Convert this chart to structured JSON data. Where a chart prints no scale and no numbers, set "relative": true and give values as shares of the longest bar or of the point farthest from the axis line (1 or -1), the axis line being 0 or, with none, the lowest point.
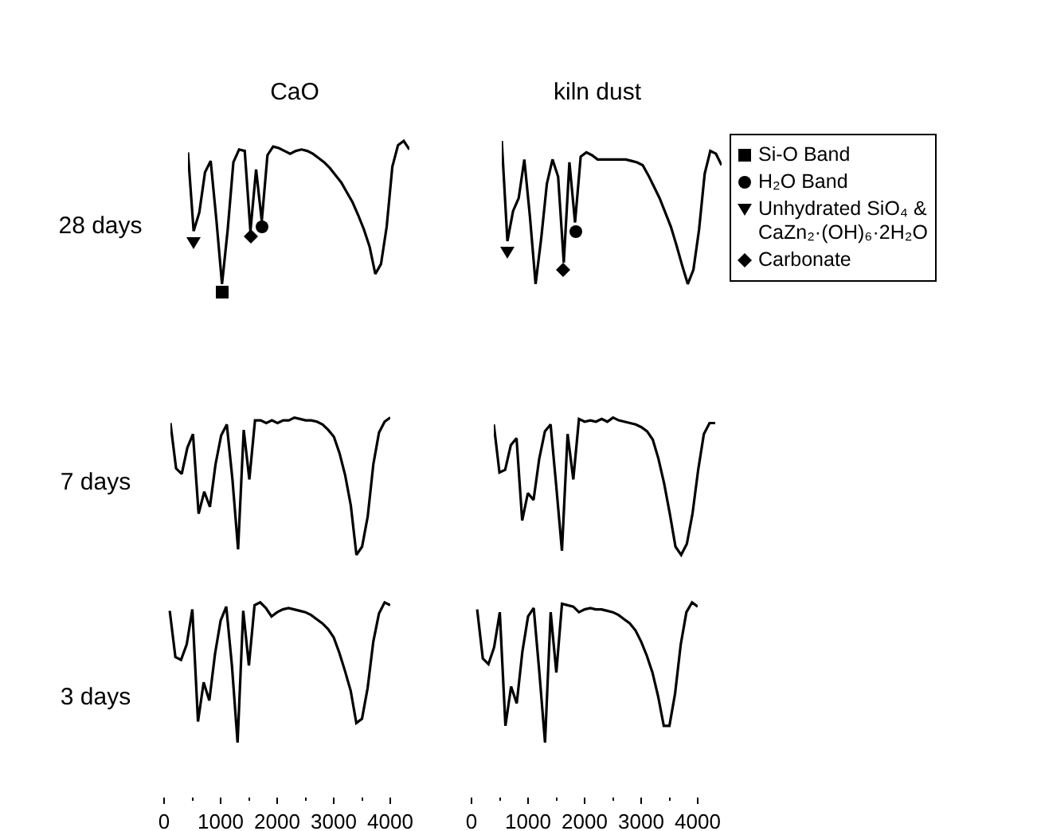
{
  "chart_data": [
    {
      "type": "other",
      "annotations": [
        "CaO",
        "kiln dust",
        "28 days",
        "7 days",
        "3 days",
        "Si-O Band",
        "H₂O Band",
        "Unhydrated SiO₄ &\nCaZn₂·(OH)₆·2H₂O",
        "Carbonate"
      ]
    },
    {
      "type": "line",
      "relative": true,
      "tick_labels": false,
      "categories": [
        null,
        null,
        null,
        null,
        null,
        null,
        null,
        null,
        null,
        null,
        null,
        null,
        null,
        null,
        null,
        null,
        null,
        null,
        null,
        null,
        null,
        null,
        null,
        null,
        null,
        null,
        null,
        null,
        null,
        null,
        null,
        null,
        null,
        null,
        null,
        null,
        null,
        null,
        null,
        null
      ],
      "series": [
        {
          "type": "line",
          "color": "#000000",
          "values": [
            0.92,
            0.37,
            0.5,
            0.78,
            0.86,
            0.45,
            0,
            0.38,
            0.85,
            0.94,
            0.93,
            0.37,
            0.8,
            0.44,
            0.9,
            0.96,
            0.95,
            0.93,
            0.91,
            0.93,
            0.94,
            0.93,
            0.91,
            0.88,
            0.85,
            0.81,
            0.76,
            0.71,
            0.64,
            0.57,
            0.48,
            0.38,
            0.26,
            0.07,
            0.14,
            0.4,
            0.82,
            0.97,
            1,
            0.94
          ]
        }
      ]
    },
    {
      "type": "line",
      "relative": true,
      "tick_labels": false,
      "categories": [
        null,
        null,
        null,
        null,
        null,
        null,
        null,
        null,
        null,
        null,
        null,
        null,
        null,
        null,
        null,
        null,
        null,
        null,
        null,
        null,
        null,
        null,
        null,
        null,
        null,
        null,
        null,
        null,
        null,
        null,
        null,
        null,
        null,
        null,
        null,
        null,
        null,
        null,
        null,
        null
      ],
      "series": [
        {
          "type": "line",
          "color": "#000000",
          "values": [
            1,
            0.3,
            0.51,
            0.6,
            0.87,
            0.47,
            0,
            0.32,
            0.7,
            0.87,
            0.75,
            0.15,
            0.85,
            0.43,
            0.89,
            0.92,
            0.9,
            0.87,
            0.87,
            0.87,
            0.87,
            0.87,
            0.87,
            0.86,
            0.85,
            0.83,
            0.76,
            0.68,
            0.6,
            0.5,
            0.4,
            0.27,
            0.13,
            0,
            0.1,
            0.38,
            0.77,
            0.93,
            0.91,
            0.83
          ]
        }
      ]
    },
    {
      "type": "line",
      "relative": true,
      "tick_labels": false,
      "categories": [
        null,
        null,
        null,
        null,
        null,
        null,
        null,
        null,
        null,
        null,
        null,
        null,
        null,
        null,
        null,
        null,
        null,
        null,
        null,
        null,
        null,
        null,
        null,
        null,
        null,
        null,
        null,
        null,
        null,
        null,
        null,
        null,
        null,
        null,
        null,
        null,
        null,
        null,
        null,
        null
      ],
      "series": [
        {
          "type": "line",
          "color": "#000000",
          "values": [
            0.96,
            0.63,
            0.59,
            0.78,
            0.88,
            0.3,
            0.46,
            0.35,
            0.66,
            0.87,
            0.95,
            0.55,
            0.04,
            0.91,
            0.55,
            0.98,
            0.98,
            0.96,
            0.98,
            0.96,
            0.98,
            0.98,
            1,
            0.99,
            0.98,
            0.98,
            0.97,
            0.95,
            0.91,
            0.86,
            0.74,
            0.58,
            0.36,
            0,
            0.06,
            0.28,
            0.66,
            0.89,
            0.97,
            1
          ]
        }
      ]
    },
    {
      "type": "line",
      "relative": true,
      "tick_labels": false,
      "categories": [
        null,
        null,
        null,
        null,
        null,
        null,
        null,
        null,
        null,
        null,
        null,
        null,
        null,
        null,
        null,
        null,
        null,
        null,
        null,
        null,
        null,
        null,
        null,
        null,
        null,
        null,
        null,
        null,
        null,
        null,
        null,
        null,
        null,
        null,
        null,
        null,
        null,
        null,
        null,
        null
      ],
      "series": [
        {
          "type": "line",
          "color": "#000000",
          "values": [
            0.95,
            0.6,
            0.62,
            0.8,
            0.85,
            0.25,
            0.45,
            0.4,
            0.7,
            0.9,
            0.95,
            0.5,
            0.03,
            0.88,
            0.55,
            0.99,
            0.97,
            0.98,
            0.97,
            0.99,
            0.97,
            1,
            0.98,
            0.97,
            0.96,
            0.95,
            0.93,
            0.9,
            0.84,
            0.7,
            0.52,
            0.3,
            0.06,
            0,
            0.08,
            0.3,
            0.62,
            0.88,
            0.96,
            0.96
          ]
        }
      ]
    },
    {
      "type": "line",
      "relative": true,
      "xlim": [
        0,
        4000
      ],
      "xticks": [
        0,
        1000,
        2000,
        3000,
        4000
      ],
      "tick_labels": "x",
      "series": [
        {
          "type": "line",
          "color": "#000000",
          "x": [
            100,
            200,
            300,
            400,
            500,
            600,
            700,
            800,
            900,
            1000,
            1100,
            1200,
            1300,
            1400,
            1500,
            1600,
            1700,
            1800,
            1900,
            2000,
            2100,
            2200,
            2300,
            2400,
            2500,
            2600,
            2700,
            2800,
            2900,
            3000,
            3100,
            3200,
            3300,
            3400,
            3500,
            3600,
            3700,
            3800,
            3900,
            4000
          ],
          "values": [
            0.94,
            0.61,
            0.59,
            0.7,
            0.95,
            0.15,
            0.43,
            0.3,
            0.63,
            0.87,
            0.97,
            0.55,
            0,
            0.94,
            0.55,
            0.98,
            1,
            0.96,
            0.9,
            0.93,
            0.95,
            0.96,
            0.95,
            0.94,
            0.93,
            0.91,
            0.88,
            0.85,
            0.81,
            0.75,
            0.64,
            0.51,
            0.37,
            0.14,
            0.17,
            0.39,
            0.72,
            0.92,
            1,
            0.98
          ]
        }
      ]
    },
    {
      "type": "line",
      "relative": true,
      "xlim": [
        0,
        4000
      ],
      "xticks": [
        0,
        1000,
        2000,
        3000,
        4000
      ],
      "tick_labels": "x",
      "series": [
        {
          "type": "line",
          "color": "#000000",
          "x": [
            100,
            200,
            300,
            400,
            500,
            600,
            700,
            800,
            900,
            1000,
            1100,
            1200,
            1300,
            1400,
            1500,
            1600,
            1700,
            1800,
            1900,
            2000,
            2100,
            2200,
            2300,
            2400,
            2500,
            2600,
            2700,
            2800,
            2900,
            3000,
            3100,
            3200,
            3300,
            3400,
            3500,
            3600,
            3700,
            3800,
            3900,
            4000
          ],
          "values": [
            0.95,
            0.6,
            0.56,
            0.68,
            0.93,
            0.12,
            0.4,
            0.28,
            0.65,
            0.9,
            0.96,
            0.5,
            0,
            0.93,
            0.5,
            0.99,
            0.98,
            0.97,
            0.93,
            0.95,
            0.96,
            0.95,
            0.95,
            0.94,
            0.93,
            0.91,
            0.88,
            0.85,
            0.8,
            0.72,
            0.62,
            0.5,
            0.33,
            0.12,
            0.12,
            0.35,
            0.7,
            0.93,
            1,
            0.97
          ]
        }
      ]
    }
  ]
}
